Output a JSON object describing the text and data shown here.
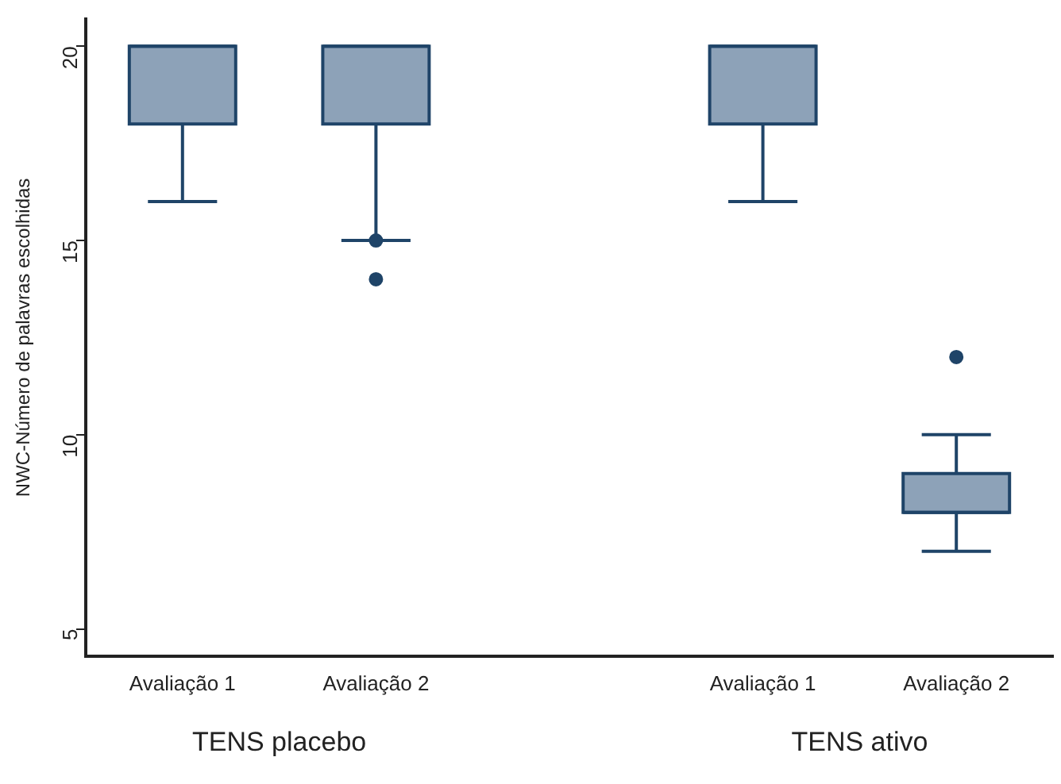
{
  "chart_data": {
    "type": "box",
    "ylabel": "NWC-Número de palavras escolhidas",
    "categories": [
      "Avaliação 1",
      "Avaliação 2",
      "Avaliação 1",
      "Avaliação 2"
    ],
    "color": "#8da2b8",
    "boxes": [
      {
        "low": 16,
        "q1": 18,
        "median": 20,
        "q3": 20,
        "high": 20
      },
      {
        "low": 15,
        "q1": 18,
        "median": 20,
        "q3": 20,
        "high": 20,
        "outliers": [
          15,
          14
        ]
      },
      {
        "low": 16,
        "q1": 18,
        "median": 20,
        "q3": 20,
        "high": 20
      },
      {
        "low": 7,
        "q1": 8,
        "median": 8,
        "q3": 9,
        "high": 10,
        "outliers": [
          12
        ]
      }
    ],
    "ylim": [
      4.3,
      20.7
    ],
    "yticks": [
      5,
      10,
      15,
      20
    ],
    "grid": false,
    "legend": false,
    "annotations": [
      "TENS placebo",
      "TENS ativo"
    ]
  }
}
